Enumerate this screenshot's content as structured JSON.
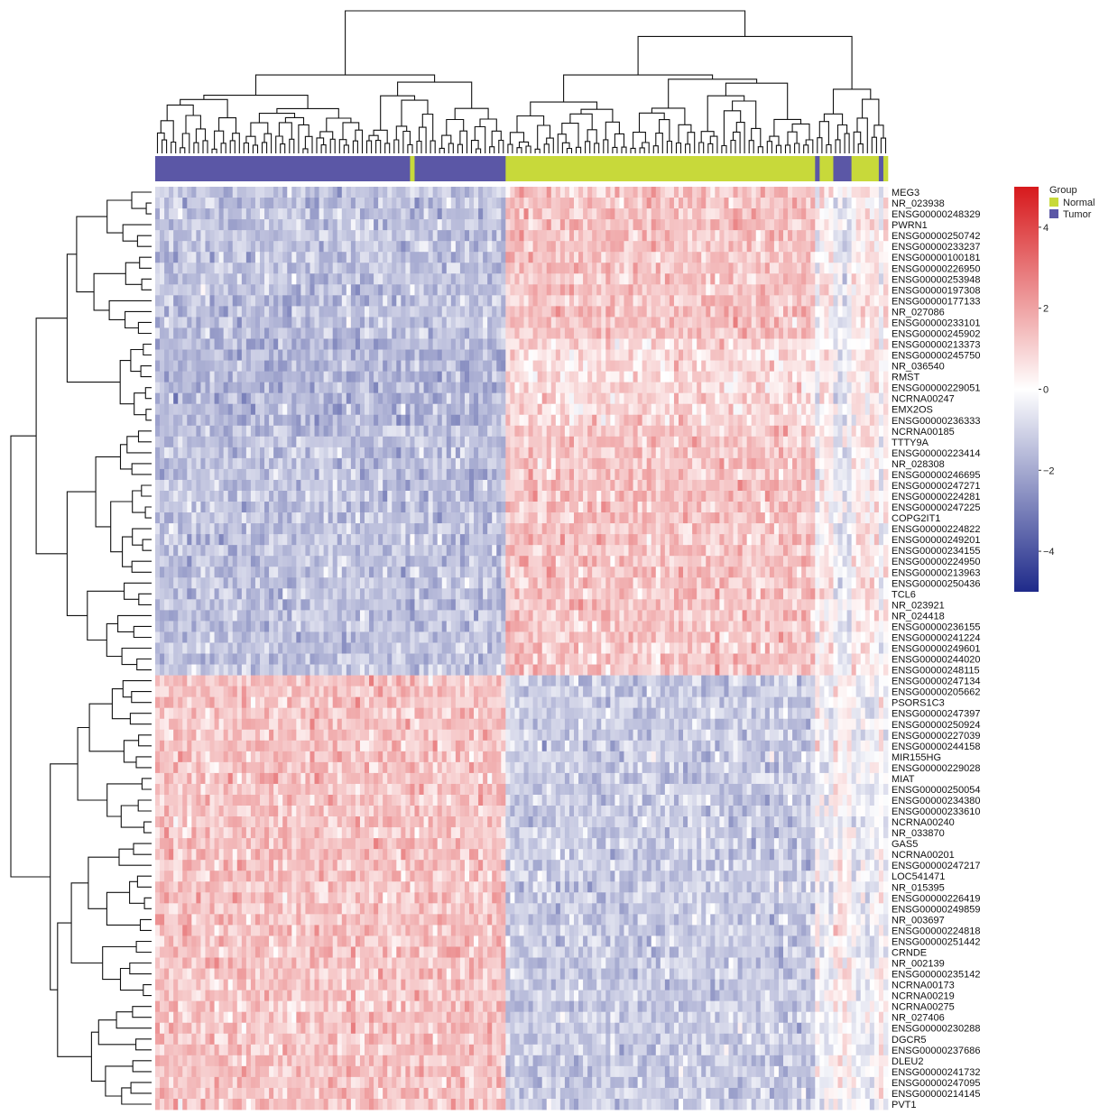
{
  "chart_data": {
    "type": "heatmap",
    "color_scale": {
      "low": "#1f2a8a",
      "mid": "#ffffff",
      "high": "#d7191c",
      "range": [
        -5,
        5
      ],
      "ticks": [
        4,
        2,
        0,
        -2,
        -4
      ],
      "tick_labels": [
        "4",
        "2",
        "0",
        "−2",
        "−4"
      ]
    },
    "legend": {
      "title": "Group",
      "entries": [
        {
          "label": "Normal",
          "color": "#c8d93a"
        },
        {
          "label": "Tumor",
          "color": "#5b57a6"
        }
      ]
    },
    "groups_by_column_block": [
      {
        "group": "Tumor",
        "columns": 56
      },
      {
        "group": "Normal",
        "columns": 1
      },
      {
        "group": "Tumor",
        "columns": 20
      },
      {
        "group": "Normal",
        "columns": 68
      },
      {
        "group": "Tumor",
        "columns": 1
      },
      {
        "group": "Normal",
        "columns": 3
      },
      {
        "group": "Tumor",
        "columns": 4
      },
      {
        "group": "Normal",
        "columns": 6
      },
      {
        "group": "Tumor",
        "columns": 1
      },
      {
        "group": "Normal",
        "columns": 1
      }
    ],
    "column_cluster_sizes": {
      "tumor_cluster": 77,
      "normal_cluster_main": 68,
      "normal_cluster_right": 16
    },
    "row_labels": [
      "MEG3",
      "NR_023938",
      "ENSG00000248329",
      "PWRN1",
      "ENSG00000250742",
      "ENSG00000233237",
      "ENSG00000100181",
      "ENSG00000226950",
      "ENSG00000253948",
      "ENSG00000197308",
      "ENSG00000177133",
      "NR_027086",
      "ENSG00000233101",
      "ENSG00000245902",
      "ENSG00000213373",
      "ENSG00000245750",
      "NR_036540",
      "RMST",
      "ENSG00000229051",
      "NCRNA00247",
      "EMX2OS",
      "ENSG00000236333",
      "NCRNA00185",
      "TTTY9A",
      "ENSG00000223414",
      "NR_028308",
      "ENSG00000246695",
      "ENSG00000247271",
      "ENSG00000224281",
      "ENSG00000247225",
      "COPG2IT1",
      "ENSG00000224822",
      "ENSG00000249201",
      "ENSG00000234155",
      "ENSG00000224950",
      "ENSG00000213963",
      "ENSG00000250436",
      "TCL6",
      "NR_023921",
      "NR_024418",
      "ENSG00000236155",
      "ENSG00000241224",
      "ENSG00000249601",
      "ENSG00000244020",
      "ENSG00000248115",
      "ENSG00000247134",
      "ENSG00000205662",
      "PSORS1C3",
      "ENSG00000247397",
      "ENSG00000250924",
      "ENSG00000227039",
      "ENSG00000244158",
      "MIR155HG",
      "ENSG00000229028",
      "MIAT",
      "ENSG00000250054",
      "ENSG00000234380",
      "ENSG00000233610",
      "NCRNA00240",
      "NR_033870",
      "GAS5",
      "NCRNA00201",
      "ENSG00000247217",
      "LOC541471",
      "NR_015395",
      "ENSG00000226419",
      "ENSG00000249859",
      "NR_003697",
      "ENSG00000224818",
      "ENSG00000251442",
      "CRNDE",
      "NR_002139",
      "ENSG00000235142",
      "NCRNA00173",
      "NCRNA00219",
      "NCRNA00275",
      "NR_027406",
      "ENSG00000230288",
      "DGCR5",
      "ENSG00000237686",
      "DLEU2",
      "ENSG00000241732",
      "ENSG00000247095",
      "ENSG00000214145",
      "PVT1"
    ],
    "row_pattern": {
      "rows_0_to_44": {
        "tumor_mean": -1.4,
        "normal_mean": 1.3
      },
      "rows_45_to_84": {
        "tumor_mean": 1.3,
        "normal_mean": -1.2
      }
    },
    "num_columns": 161,
    "num_rows": 85
  }
}
